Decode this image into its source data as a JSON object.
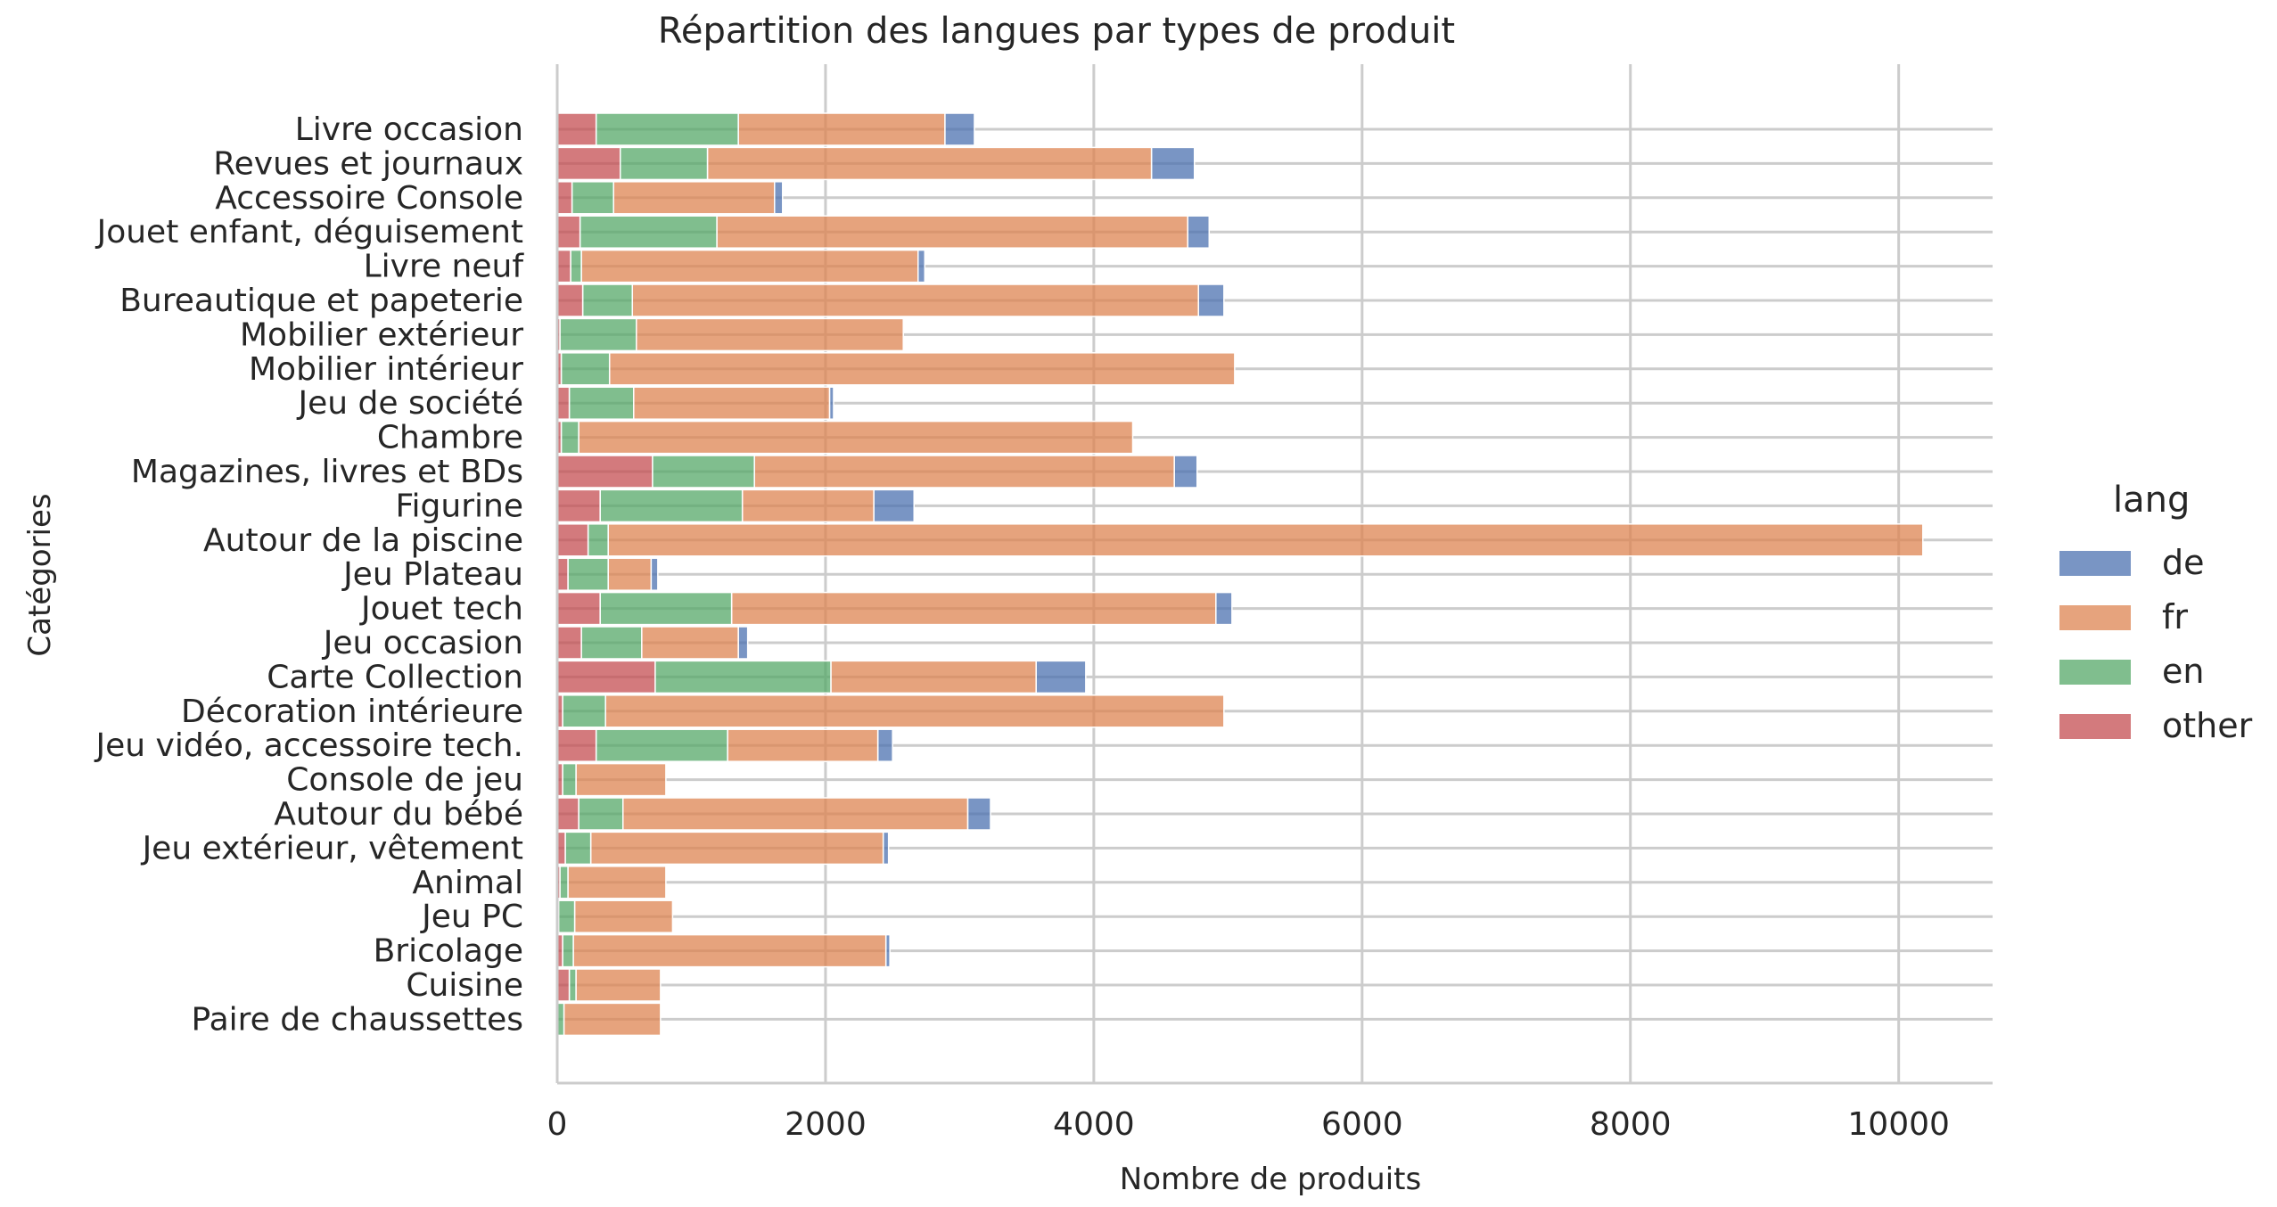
{
  "chart_data": {
    "type": "bar",
    "orientation": "horizontal",
    "stacked": "layered",
    "title": "Répartition des langues par types de produit",
    "xlabel": "Nombre de produits",
    "ylabel": "Catégories",
    "xlim": [
      0,
      10700
    ],
    "xticks": [
      0,
      2000,
      4000,
      6000,
      8000,
      10000
    ],
    "grid": true,
    "legend": {
      "title": "lang",
      "placement": "right"
    },
    "categories": [
      "Livre occasion",
      "Revues et journaux",
      "Accessoire Console",
      "Jouet enfant, déguisement",
      "Livre neuf",
      "Bureautique et papeterie",
      "Mobilier extérieur",
      "Mobilier intérieur",
      "Jeu de société",
      "Chambre",
      "Magazines, livres et BDs",
      "Figurine",
      "Autour de la piscine",
      "Jeu Plateau",
      "Jouet tech",
      "Jeu occasion",
      "Carte Collection",
      "Décoration intérieure",
      "Jeu vidéo, accessoire tech.",
      "Console de jeu",
      "Autour du bébé",
      "Jeu extérieur, vêtement",
      "Animal",
      "Jeu PC",
      "Bricolage",
      "Cuisine",
      "Paire de chaussettes"
    ],
    "series": [
      {
        "name": "de",
        "color": "#4c72b0",
        "segments": [
          [
            2890,
            3110
          ],
          [
            4430,
            4750
          ],
          [
            1620,
            1680
          ],
          [
            4700,
            4860
          ],
          [
            2690,
            2740
          ],
          [
            4780,
            4970
          ],
          [
            0,
            0
          ],
          [
            0,
            0
          ],
          [
            2030,
            2060
          ],
          [
            0,
            0
          ],
          [
            4600,
            4770
          ],
          [
            2360,
            2660
          ],
          [
            0,
            0
          ],
          [
            700,
            750
          ],
          [
            4910,
            5030
          ],
          [
            1350,
            1420
          ],
          [
            3570,
            3940
          ],
          [
            0,
            0
          ],
          [
            2390,
            2500
          ],
          [
            0,
            0
          ],
          [
            3060,
            3230
          ],
          [
            2430,
            2470
          ],
          [
            0,
            0
          ],
          [
            0,
            0
          ],
          [
            2450,
            2480
          ],
          [
            0,
            0
          ],
          [
            0,
            0
          ]
        ]
      },
      {
        "name": "fr",
        "color": "#dd8452",
        "segments": [
          [
            1350,
            2890
          ],
          [
            1120,
            4430
          ],
          [
            420,
            1620
          ],
          [
            1190,
            4700
          ],
          [
            180,
            2690
          ],
          [
            560,
            4780
          ],
          [
            590,
            2580
          ],
          [
            390,
            5050
          ],
          [
            570,
            2030
          ],
          [
            160,
            4290
          ],
          [
            1470,
            4600
          ],
          [
            1380,
            2360
          ],
          [
            380,
            10180
          ],
          [
            380,
            700
          ],
          [
            1300,
            4910
          ],
          [
            630,
            1350
          ],
          [
            2040,
            3570
          ],
          [
            360,
            4970
          ],
          [
            1270,
            2390
          ],
          [
            140,
            810
          ],
          [
            490,
            3060
          ],
          [
            250,
            2430
          ],
          [
            80,
            810
          ],
          [
            130,
            860
          ],
          [
            120,
            2450
          ],
          [
            140,
            770
          ],
          [
            50,
            770
          ]
        ]
      },
      {
        "name": "en",
        "color": "#55a868",
        "segments": [
          [
            290,
            1350
          ],
          [
            470,
            1120
          ],
          [
            110,
            420
          ],
          [
            170,
            1190
          ],
          [
            100,
            180
          ],
          [
            190,
            560
          ],
          [
            20,
            590
          ],
          [
            30,
            390
          ],
          [
            90,
            570
          ],
          [
            30,
            160
          ],
          [
            710,
            1470
          ],
          [
            320,
            1380
          ],
          [
            230,
            380
          ],
          [
            80,
            380
          ],
          [
            320,
            1300
          ],
          [
            180,
            630
          ],
          [
            730,
            2040
          ],
          [
            40,
            360
          ],
          [
            290,
            1270
          ],
          [
            40,
            140
          ],
          [
            160,
            490
          ],
          [
            60,
            250
          ],
          [
            20,
            80
          ],
          [
            10,
            130
          ],
          [
            40,
            120
          ],
          [
            90,
            140
          ],
          [
            0,
            50
          ]
        ]
      },
      {
        "name": "other",
        "color": "#c44e52",
        "segments": [
          [
            0,
            290
          ],
          [
            0,
            470
          ],
          [
            0,
            110
          ],
          [
            0,
            170
          ],
          [
            0,
            100
          ],
          [
            0,
            190
          ],
          [
            0,
            20
          ],
          [
            0,
            30
          ],
          [
            0,
            90
          ],
          [
            0,
            30
          ],
          [
            0,
            710
          ],
          [
            0,
            320
          ],
          [
            0,
            230
          ],
          [
            0,
            80
          ],
          [
            0,
            320
          ],
          [
            0,
            180
          ],
          [
            0,
            730
          ],
          [
            0,
            40
          ],
          [
            0,
            290
          ],
          [
            0,
            40
          ],
          [
            0,
            160
          ],
          [
            0,
            60
          ],
          [
            0,
            20
          ],
          [
            0,
            10
          ],
          [
            0,
            40
          ],
          [
            0,
            90
          ],
          [
            0,
            0
          ]
        ]
      }
    ]
  }
}
